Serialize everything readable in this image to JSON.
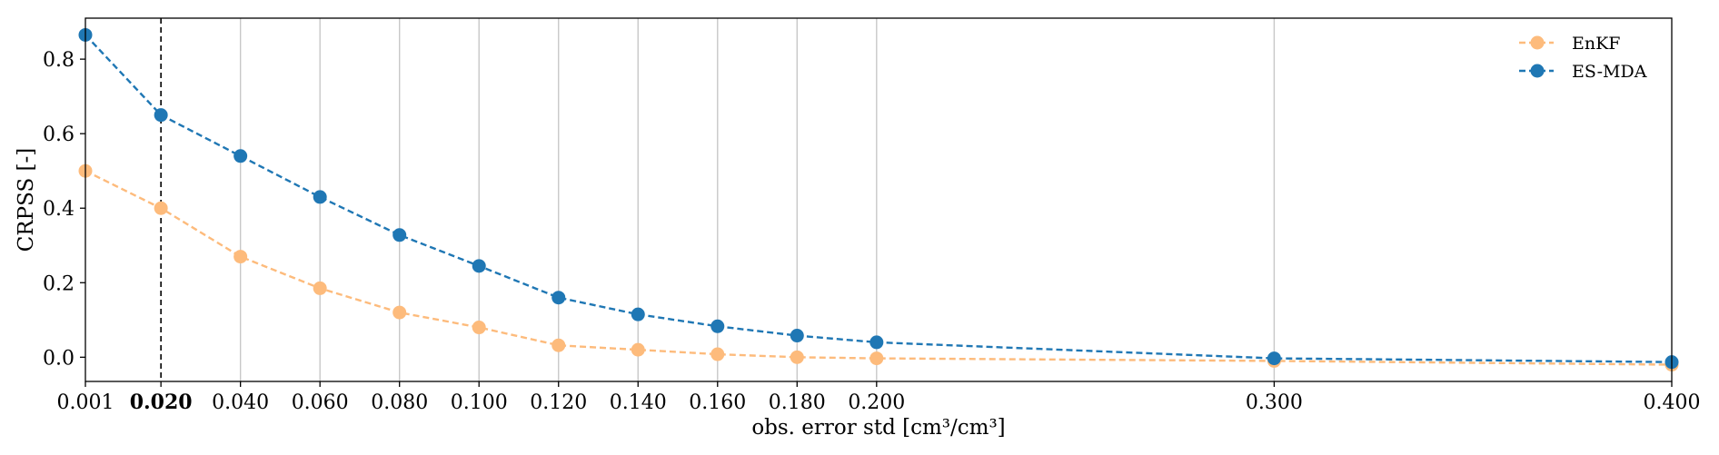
{
  "chart_data": {
    "type": "line",
    "xlabel": "obs. error std [cm³/cm³]",
    "ylabel": "CRPSS [-]",
    "xlim": [
      0.001,
      0.4
    ],
    "ylim": [
      -0.065,
      0.91
    ],
    "x": [
      0.001,
      0.02,
      0.04,
      0.06,
      0.08,
      0.1,
      0.12,
      0.14,
      0.16,
      0.18,
      0.2,
      0.3,
      0.4
    ],
    "x_tick_labels": [
      "0.001",
      "0.020",
      "0.040",
      "0.060",
      "0.080",
      "0.100",
      "0.120",
      "0.140",
      "0.160",
      "0.180",
      "0.200",
      "0.300",
      "0.400"
    ],
    "highlighted_x_tick": "0.020",
    "y_ticks": [
      0.0,
      0.2,
      0.4,
      0.6,
      0.8
    ],
    "y_tick_labels": [
      "0.0",
      "0.2",
      "0.4",
      "0.6",
      "0.8"
    ],
    "vertical_gridlines": [
      0.04,
      0.06,
      0.08,
      0.1,
      0.12,
      0.14,
      0.16,
      0.18,
      0.2,
      0.3
    ],
    "reference_line_x": 0.02,
    "legend_position": "top-right",
    "series": [
      {
        "name": "EnKF",
        "color": "#fdbb7c",
        "values": [
          0.5,
          0.4,
          0.27,
          0.185,
          0.12,
          0.08,
          0.032,
          0.02,
          0.008,
          0.0,
          -0.003,
          -0.01,
          -0.02
        ]
      },
      {
        "name": "ES-MDA",
        "color": "#1f77b4",
        "values": [
          0.865,
          0.65,
          0.54,
          0.43,
          0.328,
          0.245,
          0.16,
          0.115,
          0.083,
          0.058,
          0.04,
          -0.003,
          -0.013
        ]
      }
    ]
  }
}
